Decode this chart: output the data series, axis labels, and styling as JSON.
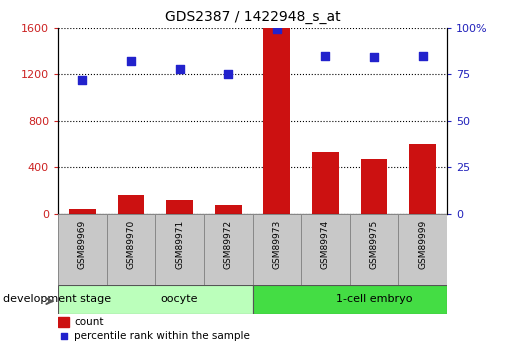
{
  "title": "GDS2387 / 1422948_s_at",
  "samples": [
    "GSM89969",
    "GSM89970",
    "GSM89971",
    "GSM89972",
    "GSM89973",
    "GSM89974",
    "GSM89975",
    "GSM89999"
  ],
  "counts": [
    40,
    160,
    120,
    80,
    1600,
    530,
    470,
    600
  ],
  "percentile_ranks": [
    72,
    82,
    78,
    75,
    99,
    85,
    84,
    85
  ],
  "groups": [
    {
      "label": "oocyte",
      "start": 0,
      "end": 4,
      "color": "#bbffbb"
    },
    {
      "label": "1-cell embryo",
      "start": 4,
      "end": 8,
      "color": "#44dd44"
    }
  ],
  "ylim_left": [
    0,
    1600
  ],
  "ylim_right": [
    0,
    100
  ],
  "yticks_left": [
    0,
    400,
    800,
    1200,
    1600
  ],
  "yticks_right": [
    0,
    25,
    50,
    75,
    100
  ],
  "bar_color": "#cc1111",
  "scatter_color": "#2222cc",
  "grid_color": "#000000",
  "bar_width": 0.55,
  "xlabel_dev_stage": "development stage",
  "legend_count": "count",
  "legend_percentile": "percentile rank within the sample",
  "cell_bg_color": "#c8c8c8",
  "cell_border_color": "#888888"
}
